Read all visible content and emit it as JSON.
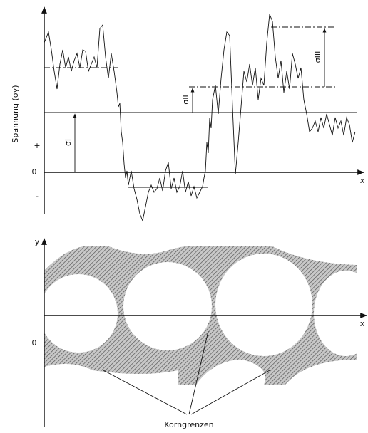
{
  "top_plot": {
    "y_axis_label": "Spannung (σy)",
    "x_axis_label": "x",
    "tick_plus": "+",
    "tick_zero": "0",
    "tick_minus": "-",
    "sigma_1": "σI",
    "sigma_2": "σII",
    "sigma_3": "σIII"
  },
  "bottom_plot": {
    "y_axis_label": "y",
    "x_axis_label": "x",
    "tick_zero": "0",
    "annotation": "Korngrenzen"
  }
}
